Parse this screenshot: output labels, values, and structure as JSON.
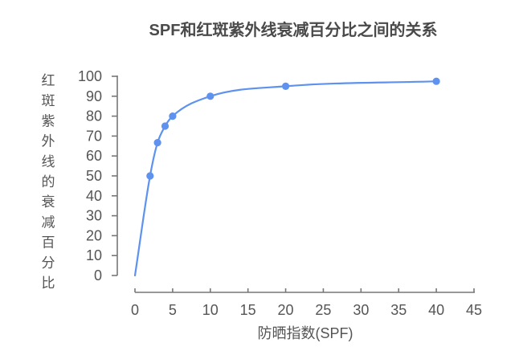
{
  "page": {
    "background_color": "#ffffff"
  },
  "chart_data": {
    "type": "line",
    "title": "SPF和红斑紫外线衰减百分比之间的关系",
    "xlabel": "防晒指数(SPF)",
    "ylabel": "红斑紫外线的衰减百分比",
    "x": [
      0,
      2,
      3,
      4,
      5,
      10,
      20,
      40
    ],
    "y": [
      0,
      50,
      66.7,
      75,
      80,
      90,
      95,
      97.5
    ],
    "marker_point_indices": [
      1,
      2,
      3,
      4,
      5,
      6,
      7
    ],
    "x_ticks": [
      0,
      5,
      10,
      15,
      20,
      25,
      30,
      35,
      40,
      45
    ],
    "y_ticks": [
      0,
      10,
      20,
      30,
      40,
      50,
      60,
      70,
      80,
      90,
      100
    ],
    "xlim": [
      0,
      45
    ],
    "ylim": [
      0,
      100
    ],
    "grid": false,
    "legend_position": "none",
    "line_color": "#5E92EE",
    "marker_color": "#5E92EE",
    "axis_color": "#777777",
    "tick_label_color": "#555555",
    "title_color": "#4a4a4a"
  }
}
